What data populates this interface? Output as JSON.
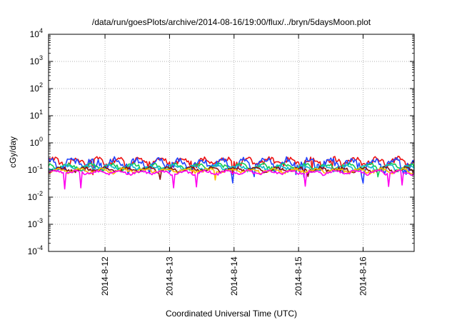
{
  "chart_data": {
    "type": "line",
    "title": "/data/run/goesPlots/archive/2014-08-16/19:00/flux/../bryn/5daysMoon.plot",
    "xlabel": "Coordinated Universal Time (UTC)",
    "ylabel": "cGy/day",
    "yscale": "log",
    "ylim": [
      0.0001,
      10000
    ],
    "xlim": [
      "2014-08-11 03:00",
      "2014-08-16 19:00"
    ],
    "y_ticks": [
      {
        "value": 0.0001,
        "base": "10",
        "exp": "-4"
      },
      {
        "value": 0.001,
        "base": "10",
        "exp": "-3"
      },
      {
        "value": 0.01,
        "base": "10",
        "exp": "-2"
      },
      {
        "value": 0.1,
        "base": "10",
        "exp": "-1"
      },
      {
        "value": 1,
        "base": "10",
        "exp": "0"
      },
      {
        "value": 10,
        "base": "10",
        "exp": "1"
      },
      {
        "value": 100,
        "base": "10",
        "exp": "2"
      },
      {
        "value": 1000,
        "base": "10",
        "exp": "3"
      },
      {
        "value": 10000,
        "base": "10",
        "exp": "4"
      }
    ],
    "x_ticks": [
      {
        "value": "2014-08-12 00:00",
        "label": "2014-8-12"
      },
      {
        "value": "2014-08-13 00:00",
        "label": "2014-8-13"
      },
      {
        "value": "2014-08-14 00:00",
        "label": "2014-8-14"
      },
      {
        "value": "2014-08-15 00:00",
        "label": "2014-8-15"
      },
      {
        "value": "2014-08-16 00:00",
        "label": "2014-8-16"
      }
    ],
    "grid": true,
    "sample_interval_hours": 0.5,
    "series": [
      {
        "color": "#ee1111",
        "base": 0.21,
        "spread": 0.11,
        "dip_chance": 0.02,
        "dip_factor": 0.6,
        "seed": 11
      },
      {
        "color": "#2244ff",
        "base": 0.18,
        "spread": 0.13,
        "dip_chance": 0.02,
        "dip_factor": 0.55,
        "seed": 23
      },
      {
        "color": "#11cc55",
        "base": 0.135,
        "spread": 0.05,
        "dip_chance": 0.01,
        "dip_factor": 0.7,
        "seed": 37
      },
      {
        "color": "#11bbcc",
        "base": 0.125,
        "spread": 0.04,
        "dip_chance": 0.01,
        "dip_factor": 0.7,
        "seed": 41
      },
      {
        "color": "#881111",
        "base": 0.105,
        "spread": 0.03,
        "dip_chance": 0.01,
        "dip_factor": 0.75,
        "seed": 53
      },
      {
        "color": "#ffbb00",
        "base": 0.095,
        "spread": 0.025,
        "dip_chance": 0.01,
        "dip_factor": 0.75,
        "seed": 67
      },
      {
        "color": "#ff00ee",
        "base": 0.082,
        "spread": 0.02,
        "dip_chance": 0.05,
        "dip_factor": 0.45,
        "seed": 79
      }
    ]
  }
}
